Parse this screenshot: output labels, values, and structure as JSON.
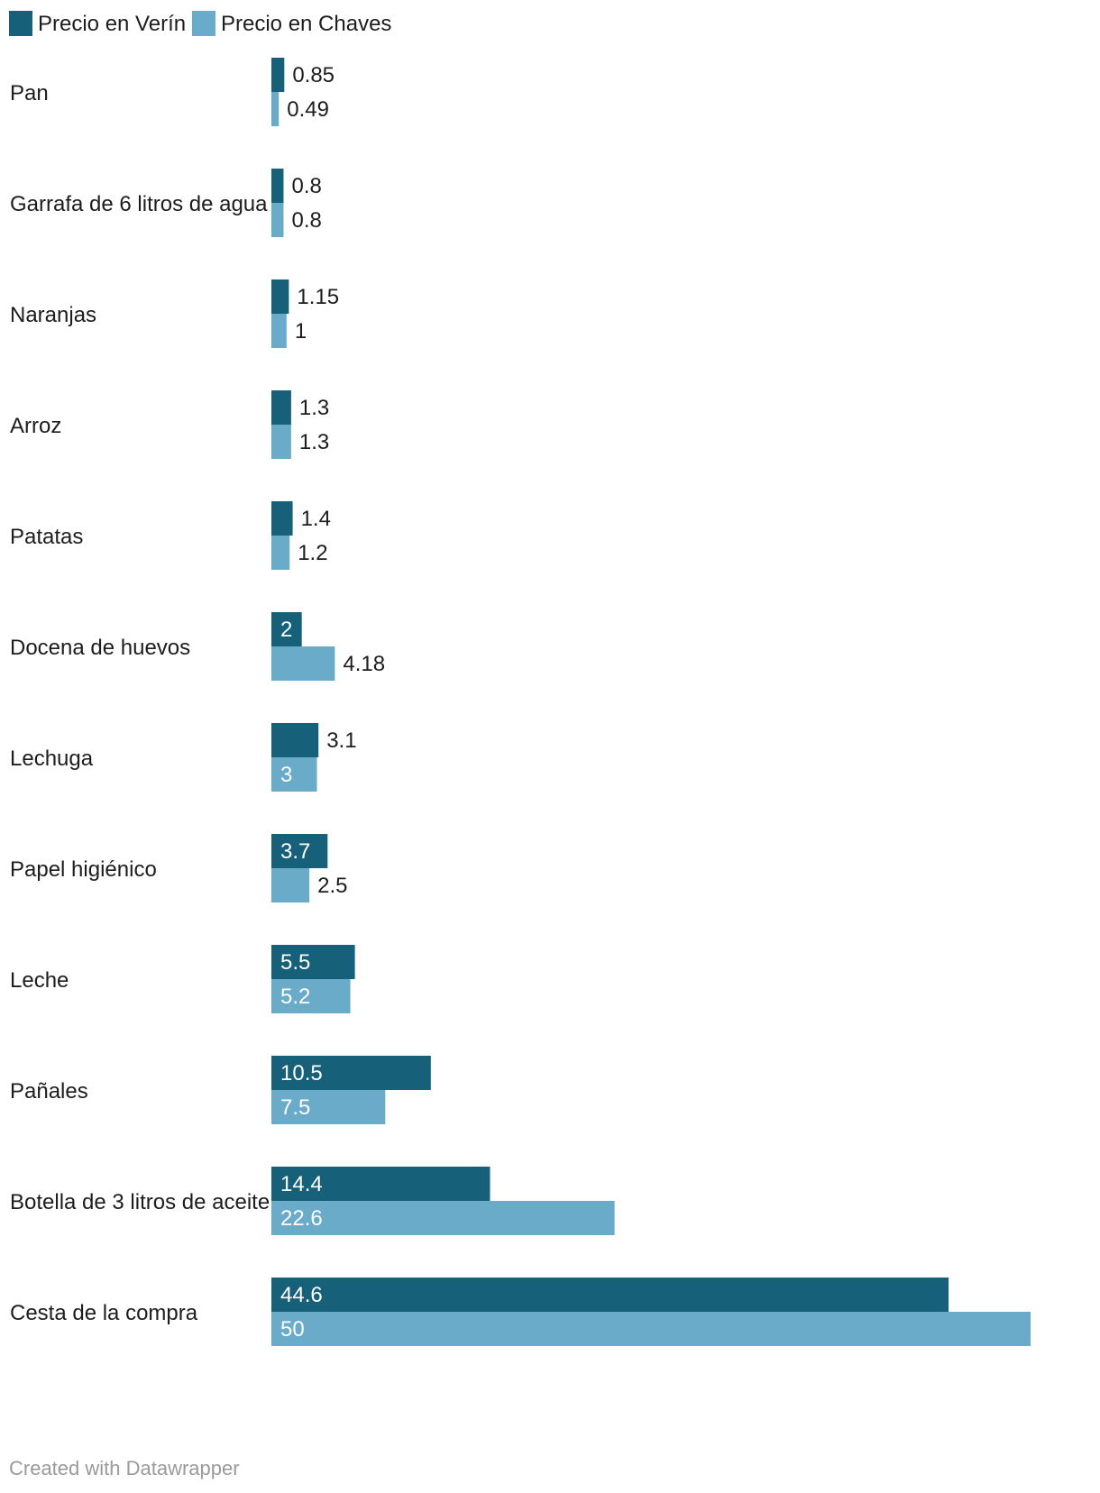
{
  "chart_data": {
    "type": "bar",
    "orientation": "horizontal",
    "categories": [
      "Pan",
      "Garrafa de 6 litros de agua",
      "Naranjas",
      "Arroz",
      "Patatas",
      "Docena de huevos",
      "Lechuga",
      "Papel higiénico",
      "Leche",
      "Pañales",
      "Botella de 3 litros de aceite",
      "Cesta de la compra"
    ],
    "series": [
      {
        "name": "Precio en Verín",
        "color": "#17607a",
        "values": [
          0.85,
          0.8,
          1.15,
          1.3,
          1.4,
          2,
          3.1,
          3.7,
          5.5,
          10.5,
          14.4,
          44.6
        ],
        "labels": [
          "0.85",
          "0.8",
          "1.15",
          "1.3",
          "1.4",
          "2",
          "3.1",
          "3.7",
          "5.5",
          "10.5",
          "14.4",
          "44.6"
        ]
      },
      {
        "name": "Precio en Chaves",
        "color": "#6aabc9",
        "values": [
          0.49,
          0.8,
          1,
          1.3,
          1.2,
          4.18,
          3,
          2.5,
          5.2,
          7.5,
          22.6,
          50
        ],
        "labels": [
          "0.49",
          "0.8",
          "1",
          "1.3",
          "1.2",
          "4.18",
          "3",
          "2.5",
          "5.2",
          "7.5",
          "22.6",
          "50"
        ]
      }
    ],
    "xlim": [
      0,
      50
    ],
    "grid": false,
    "legend": "top-left",
    "title": "",
    "xlabel": "",
    "ylabel": ""
  },
  "footer": {
    "credit": "Created with Datawrapper"
  }
}
